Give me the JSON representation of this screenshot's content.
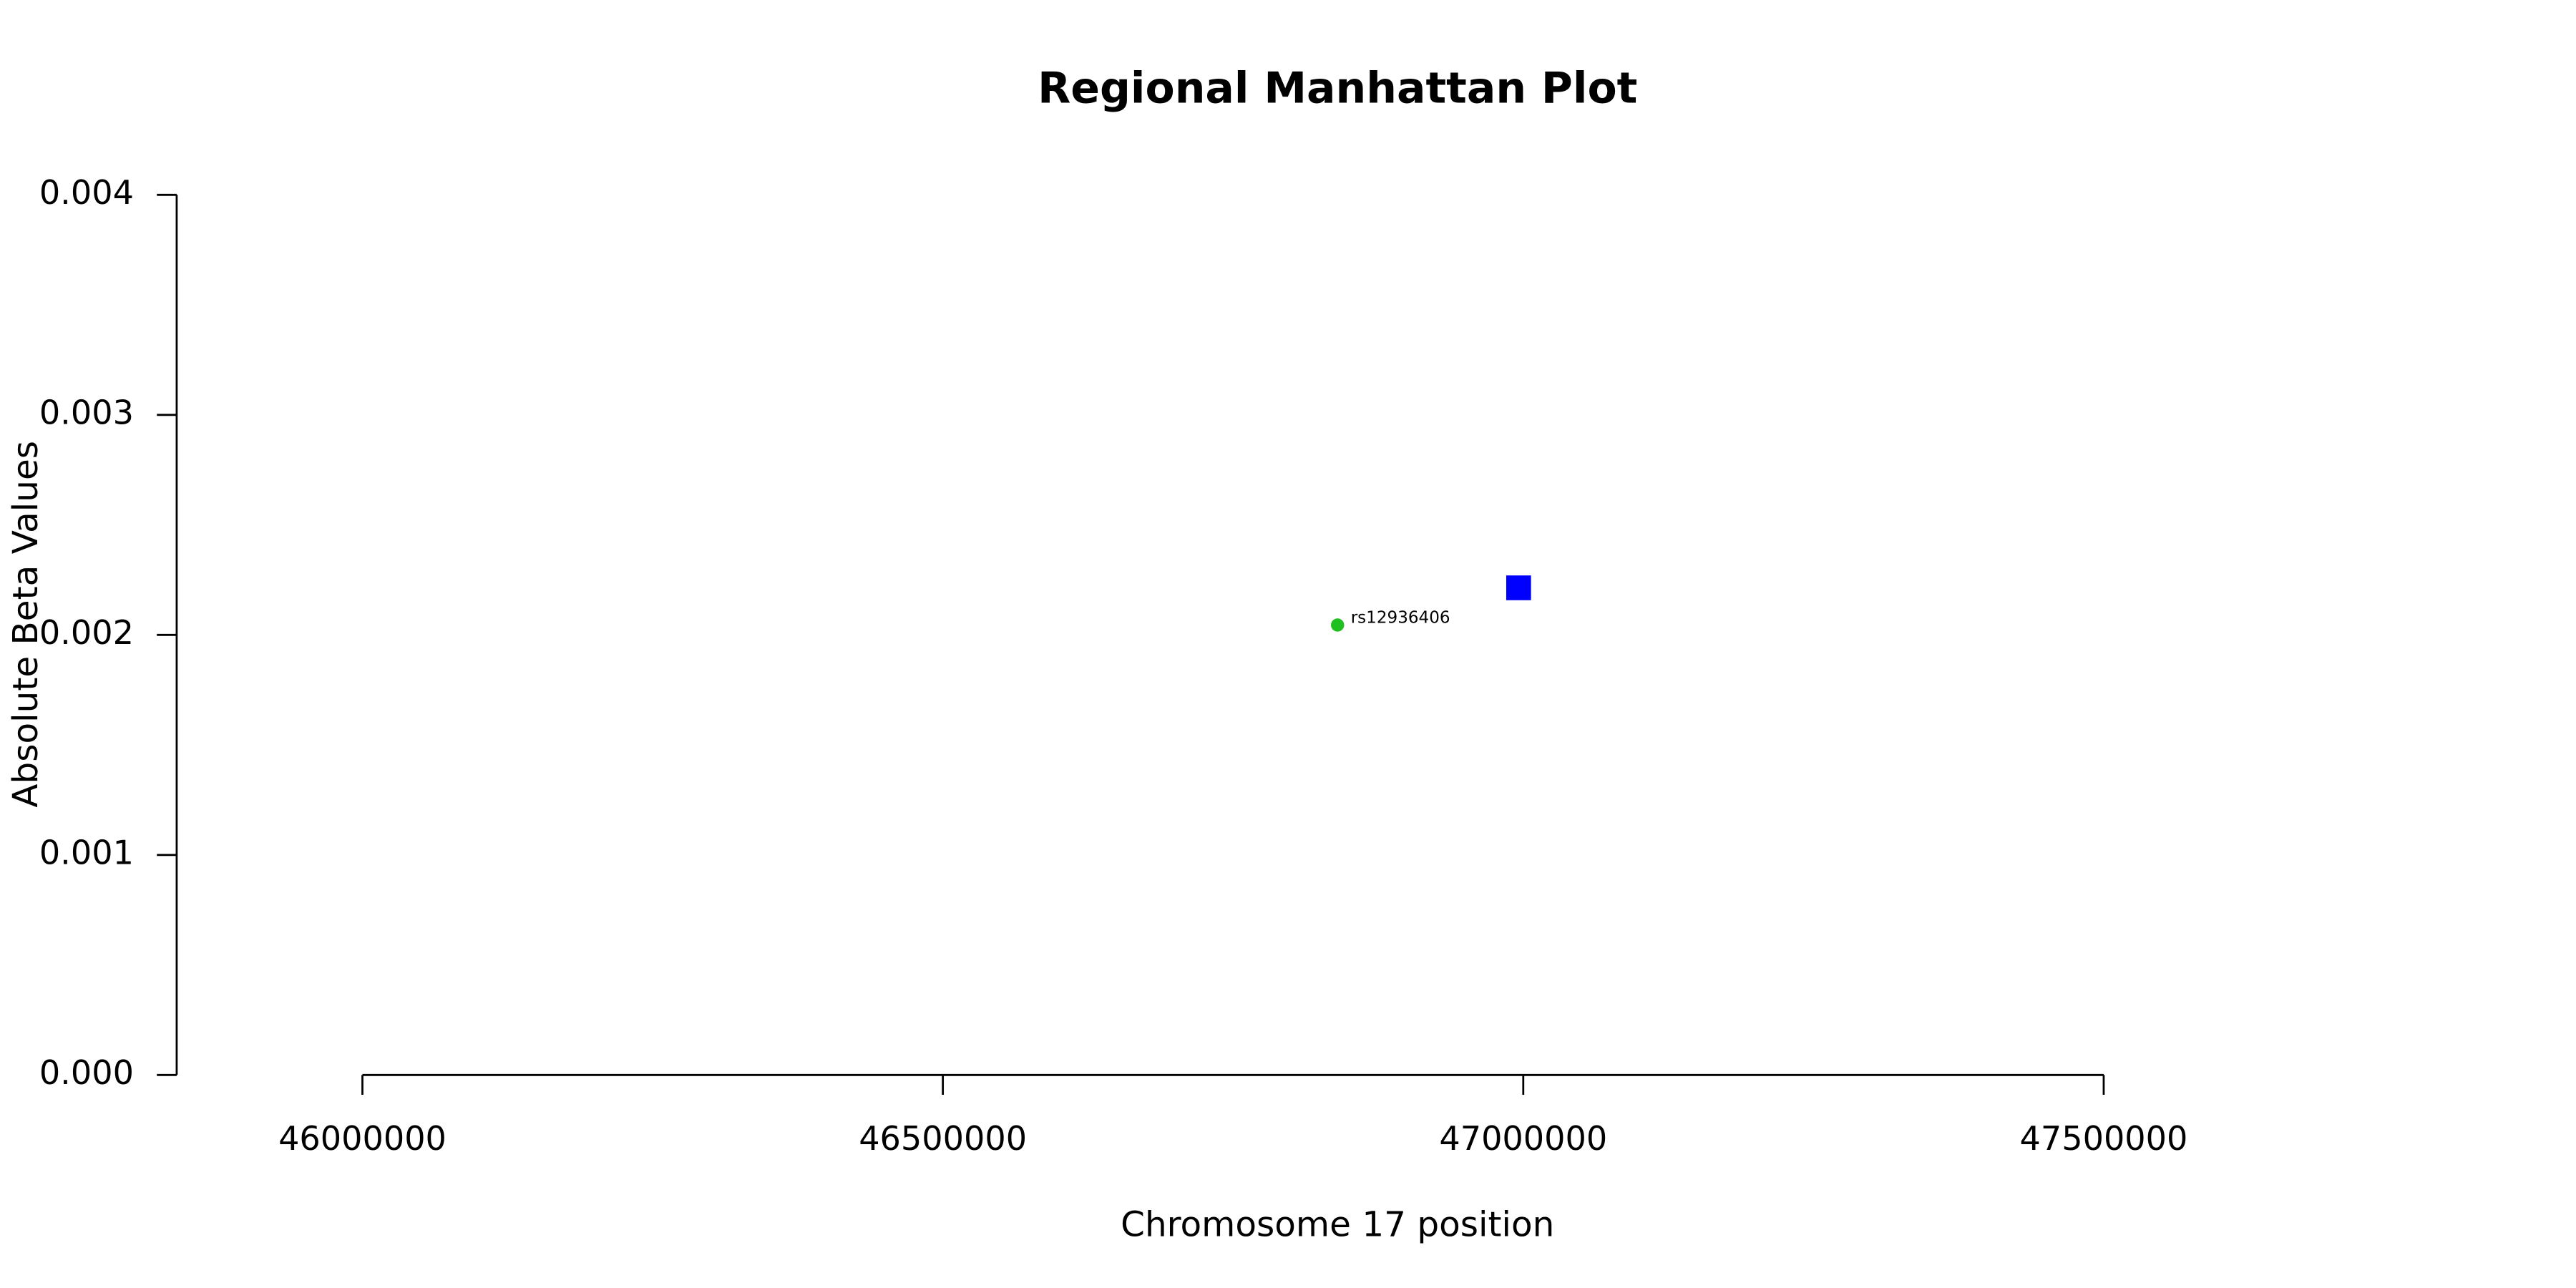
{
  "chart_data": {
    "type": "scatter",
    "title": "Regional Manhattan Plot",
    "x_label": "Chromosome 17 position",
    "y_label": "Absolute Beta Values",
    "x": [
      46840000,
      46996000
    ],
    "values": [
      0.002045,
      0.002214
    ],
    "colors": [
      "#1fbf1f",
      "#0000ff"
    ],
    "markers": [
      "circle",
      "square"
    ],
    "point_labels": [
      "rs12936406",
      null
    ],
    "xlim": [
      45840000,
      47840000
    ],
    "ylim": [
      0,
      0.004
    ],
    "xticks": [
      46000000,
      46500000,
      47000000,
      47500000
    ],
    "yticks": [
      {
        "value": 0,
        "label": "0.000"
      },
      {
        "value": 0.001,
        "label": "0.001"
      },
      {
        "value": 0.002,
        "label": "0.002"
      },
      {
        "value": 0.003,
        "label": "0.003"
      },
      {
        "value": 0.004,
        "label": "0.004"
      }
    ]
  }
}
